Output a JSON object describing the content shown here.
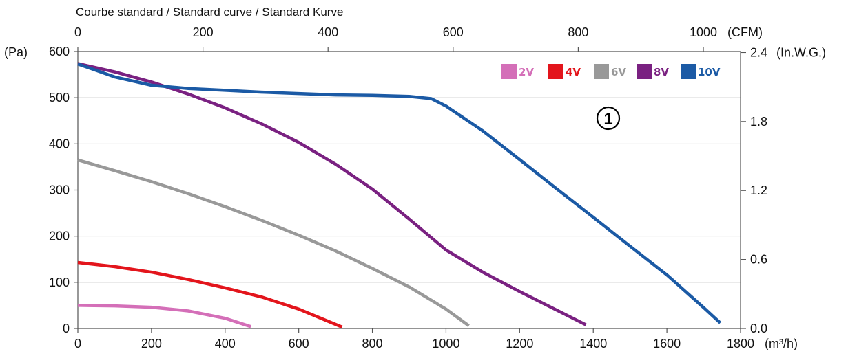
{
  "chart_data": {
    "type": "line",
    "title": "Courbe standard / Standard curve / Standard Kurve",
    "x": {
      "range": [
        0,
        1800
      ],
      "ticks": [
        "0",
        "200",
        "400",
        "600",
        "800",
        "1000",
        "1200",
        "1400",
        "1600",
        "1800"
      ],
      "unit": "(m³/h)"
    },
    "x_top": {
      "ticks": [
        "0",
        "200",
        "400",
        "600",
        "800",
        "1000"
      ],
      "values": [
        0,
        200,
        400,
        600,
        800,
        1000
      ],
      "unit": "(CFM)"
    },
    "y": {
      "range": [
        0,
        600
      ],
      "ticks": [
        "0",
        "100",
        "200",
        "300",
        "400",
        "500",
        "600"
      ],
      "unit": "(Pa)"
    },
    "y_right": {
      "ticks": [
        "0.0",
        "0.6",
        "1.2",
        "1.8",
        "2.4"
      ],
      "values": [
        0,
        0.6,
        1.2,
        1.8,
        2.4
      ],
      "unit": "(In.W.G.)"
    },
    "grid": "horizontal",
    "legend_position": "top-right",
    "annotation": "1",
    "series": [
      {
        "name": "2V",
        "color": "#d46fb8",
        "points": [
          [
            0,
            50
          ],
          [
            100,
            49
          ],
          [
            200,
            46
          ],
          [
            300,
            38
          ],
          [
            400,
            22
          ],
          [
            470,
            4
          ]
        ]
      },
      {
        "name": "4V",
        "color": "#e3151c",
        "points": [
          [
            0,
            143
          ],
          [
            100,
            134
          ],
          [
            200,
            122
          ],
          [
            300,
            106
          ],
          [
            400,
            88
          ],
          [
            500,
            68
          ],
          [
            600,
            42
          ],
          [
            700,
            9
          ],
          [
            718,
            3
          ]
        ]
      },
      {
        "name": "6V",
        "color": "#999999",
        "points": [
          [
            0,
            365
          ],
          [
            100,
            342
          ],
          [
            200,
            318
          ],
          [
            300,
            292
          ],
          [
            400,
            264
          ],
          [
            500,
            234
          ],
          [
            600,
            202
          ],
          [
            700,
            168
          ],
          [
            800,
            130
          ],
          [
            900,
            90
          ],
          [
            1000,
            42
          ],
          [
            1062,
            6
          ]
        ]
      },
      {
        "name": "8V",
        "color": "#7a2181",
        "points": [
          [
            0,
            574
          ],
          [
            100,
            556
          ],
          [
            200,
            534
          ],
          [
            300,
            508
          ],
          [
            400,
            478
          ],
          [
            500,
            443
          ],
          [
            600,
            403
          ],
          [
            700,
            356
          ],
          [
            800,
            302
          ],
          [
            900,
            237
          ],
          [
            1000,
            170
          ],
          [
            1100,
            122
          ],
          [
            1200,
            80
          ],
          [
            1300,
            40
          ],
          [
            1380,
            8
          ]
        ]
      },
      {
        "name": "10V",
        "color": "#1b5aa5",
        "points": [
          [
            0,
            573
          ],
          [
            100,
            545
          ],
          [
            200,
            527
          ],
          [
            300,
            520
          ],
          [
            400,
            516
          ],
          [
            500,
            512
          ],
          [
            600,
            509
          ],
          [
            700,
            506
          ],
          [
            800,
            505
          ],
          [
            900,
            503
          ],
          [
            960,
            498
          ],
          [
            1000,
            482
          ],
          [
            1100,
            428
          ],
          [
            1200,
            366
          ],
          [
            1300,
            303
          ],
          [
            1400,
            241
          ],
          [
            1500,
            178
          ],
          [
            1600,
            116
          ],
          [
            1700,
            45
          ],
          [
            1745,
            12
          ]
        ]
      }
    ]
  }
}
